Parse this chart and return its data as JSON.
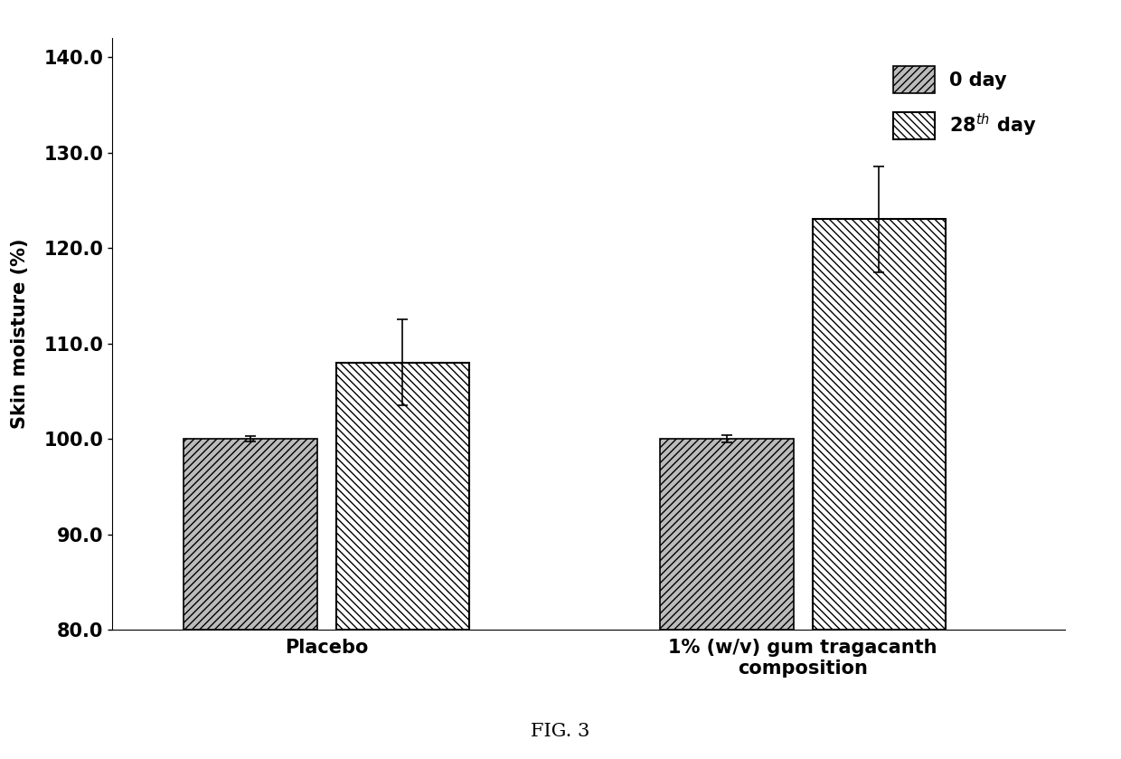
{
  "categories": [
    "Placebo",
    "1% (w/v) gum tragacanth\ncomposition"
  ],
  "day0_values": [
    100.0,
    100.0
  ],
  "day28_values": [
    108.0,
    123.0
  ],
  "day0_errors": [
    0.3,
    0.4
  ],
  "day28_errors": [
    4.5,
    5.5
  ],
  "ybase": 80.0,
  "ylabel": "Skin moisture (%)",
  "ylim": [
    80.0,
    142.0
  ],
  "yticks": [
    80.0,
    90.0,
    100.0,
    110.0,
    120.0,
    130.0,
    140.0
  ],
  "legend_label_0": "0 day",
  "legend_label_28": "28$^{th}$ day",
  "figcaption": "FIG. 3",
  "bar_width": 0.28,
  "group_positions": [
    0.55,
    1.55
  ],
  "xlim": [
    0.1,
    2.1
  ],
  "background_color": "#ffffff",
  "bar_edge_color": "#000000",
  "color_day0": "#bbbbbb",
  "color_day28": "#ffffff",
  "label_fontsize": 15,
  "tick_fontsize": 15,
  "legend_fontsize": 15,
  "caption_fontsize": 15
}
